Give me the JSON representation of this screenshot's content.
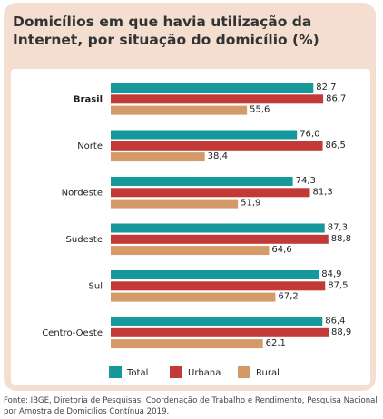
{
  "chart_data": {
    "type": "hbar",
    "title": "Domicílios em que havia utilização da Internet, por situação do domicílio (%)",
    "categories": [
      "Brasil",
      "Norte",
      "Nordeste",
      "Sudeste",
      "Sul",
      "Centro-Oeste"
    ],
    "series": [
      {
        "name": "Total",
        "color": "#15999a",
        "values": [
          82.7,
          76.0,
          74.3,
          87.3,
          84.9,
          86.4
        ],
        "value_labels": [
          "82,7",
          "76,0",
          "74,3",
          "87,3",
          "84,9",
          "86,4"
        ]
      },
      {
        "name": "Urbana",
        "color": "#c23a37",
        "values": [
          86.7,
          86.5,
          81.3,
          88.8,
          87.5,
          88.9
        ],
        "value_labels": [
          "86,7",
          "86,5",
          "81,3",
          "88,8",
          "87,5",
          "88,9"
        ]
      },
      {
        "name": "Rural",
        "color": "#d49a68",
        "values": [
          55.6,
          38.4,
          51.9,
          64.6,
          67.2,
          62.1
        ],
        "value_labels": [
          "55,6",
          "38,4",
          "51,9",
          "64,6",
          "67,2",
          "62,1"
        ]
      }
    ],
    "xlim": [
      0,
      100
    ],
    "source": "Fonte: IBGE, Diretoria de Pesquisas, Coordenação de Trabalho e Rendimento, Pesquisa Nacional por Amostra de Domicílios Contínua 2019."
  }
}
